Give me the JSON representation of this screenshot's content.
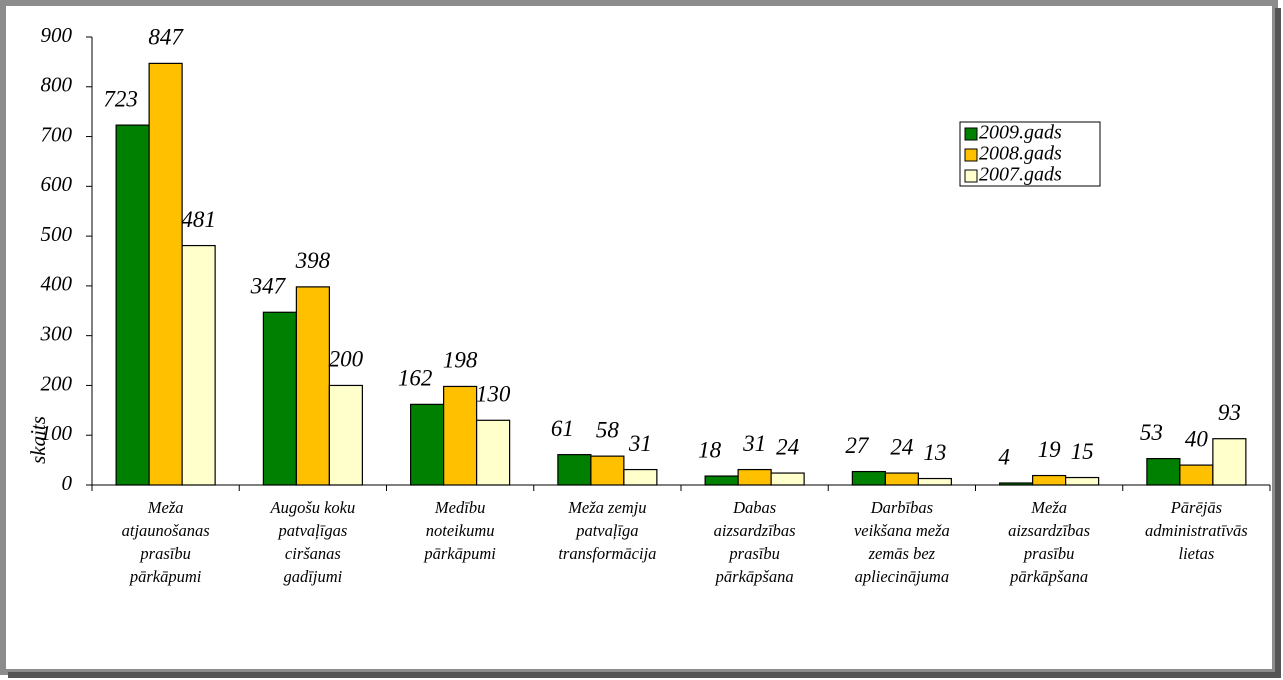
{
  "chart_data": {
    "type": "bar",
    "y_label": "skaits",
    "categories": [
      [
        "Meža",
        "atjaunošanas",
        "prasību",
        "pārkāpumi"
      ],
      [
        "Augošu koku",
        "patvaļīgas",
        "ciršanas",
        "gadījumi"
      ],
      [
        "Medību",
        "noteikumu",
        "pārkāpumi"
      ],
      [
        "Meža zemju",
        "patvaļīga",
        "transformācija"
      ],
      [
        "Dabas",
        "aizsardzības",
        "prasību",
        "pārkāpšana"
      ],
      [
        "Darbības",
        "veikšana meža",
        "zemās bez",
        "apliecinājuma"
      ],
      [
        "Meža",
        "aizsardzības",
        "prasību",
        "pārkāpšana"
      ],
      [
        "Pārējās",
        "administratīvās",
        "lietas"
      ]
    ],
    "series": [
      {
        "name": "2009.gads",
        "color": "#008000",
        "values": [
          723,
          347,
          162,
          61,
          18,
          27,
          4,
          53
        ]
      },
      {
        "name": "2008.gads",
        "color": "#ffc000",
        "values": [
          847,
          398,
          198,
          58,
          31,
          24,
          19,
          40
        ]
      },
      {
        "name": "2007.gads",
        "color": "#ffffcc",
        "values": [
          481,
          200,
          130,
          31,
          24,
          13,
          15,
          93
        ]
      }
    ],
    "ylim": [
      0,
      900
    ],
    "yticks": [
      0,
      100,
      200,
      300,
      400,
      500,
      600,
      700,
      800,
      900
    ],
    "grid": false,
    "legend": "upper right"
  }
}
